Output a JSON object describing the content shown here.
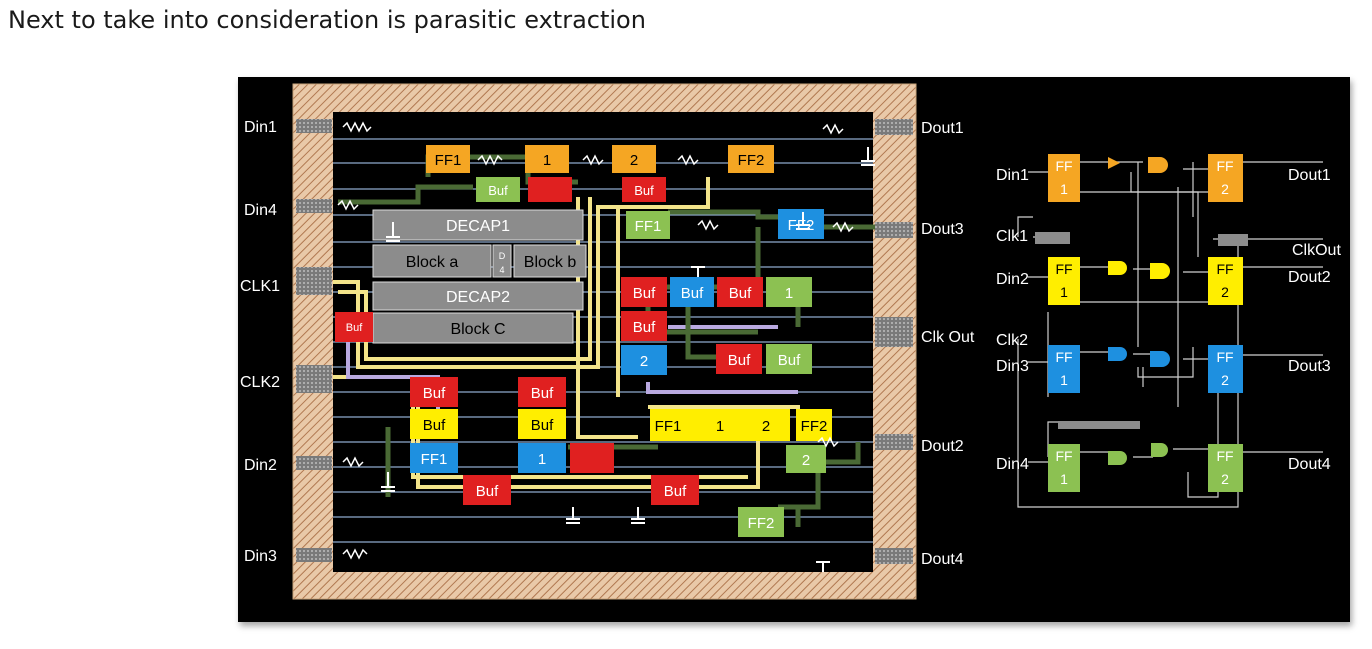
{
  "title": "Next to take into consideration is parasitic extraction",
  "layout": {
    "pins_left": [
      "Din1",
      "Din4",
      "CLK1",
      "CLK2",
      "Din2",
      "Din3"
    ],
    "pins_right": [
      "Dout1",
      "Dout3",
      "Clk Out",
      "Dout2",
      "Dout4"
    ],
    "blocks": {
      "decap1": "DECAP1",
      "block_a": "Block a",
      "d4": "D\n4",
      "block_b": "Block b",
      "decap2": "DECAP2",
      "block_c": "Block C"
    },
    "cells": {
      "buf": "Buf",
      "ff1": "FF1",
      "ff2": "FF2",
      "one": "1",
      "two": "2"
    }
  },
  "schematic": {
    "left_labels": [
      "Din1",
      "Clk1",
      "Din2",
      "Clk2",
      "Din3",
      "Din4"
    ],
    "right_labels": [
      "Dout1",
      "ClkOut",
      "Dout2",
      "Dout3",
      "Dout4"
    ],
    "ff_label": "FF",
    "ff_left_num": "1",
    "ff_right_num": "2"
  },
  "colors": {
    "orange": "#f5a623",
    "yellow": "#ffee00",
    "blue": "#1e90e0",
    "green": "#8cc152",
    "red": "#e02020",
    "gray_block": "#8a8a8a"
  }
}
